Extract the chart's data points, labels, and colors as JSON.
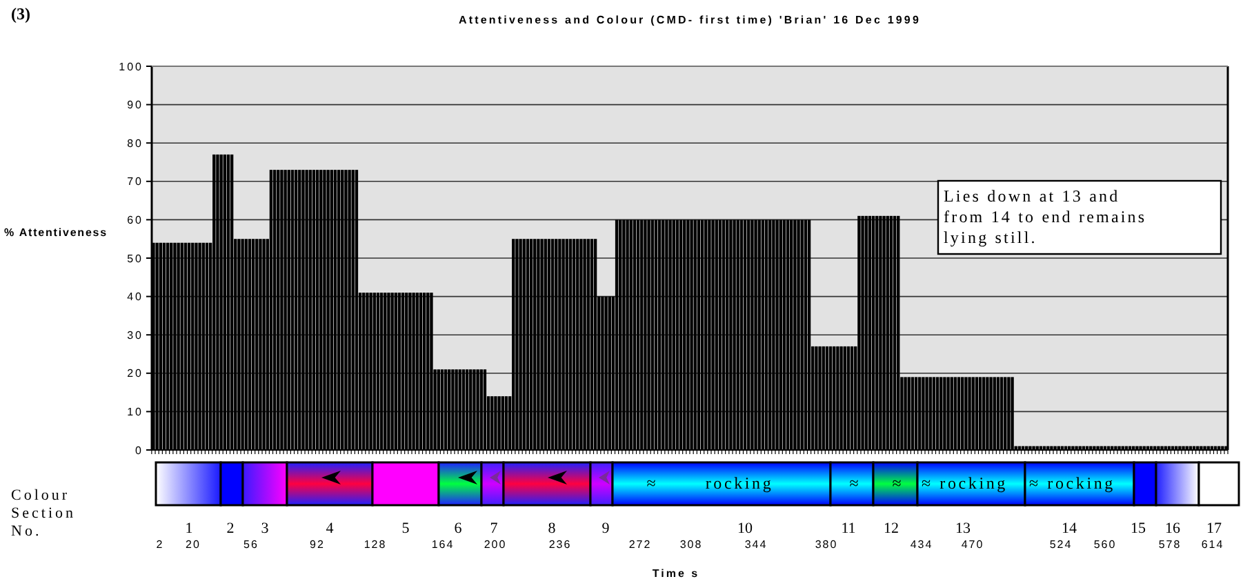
{
  "chart_data": [
    {
      "type": "bar",
      "title": "Attentiveness and Colour (CMD- first time) 'Brian' 16 Dec 1999",
      "ylabel": "% Attentiveness",
      "annotations": [
        "(3)",
        "Lies down at 13 and from 14 to end remains lying still."
      ],
      "ylim": [
        0,
        100
      ],
      "yticks": [
        0,
        10,
        20,
        30,
        40,
        50,
        60,
        70,
        80,
        90,
        100
      ],
      "grid": "y",
      "color": "#000000",
      "categories": [
        null,
        null,
        null,
        null,
        null,
        null,
        null,
        null,
        null,
        null,
        null,
        null,
        null,
        null,
        null,
        null,
        null,
        null,
        null,
        null,
        null,
        null,
        null,
        null,
        null,
        null,
        null,
        null,
        null,
        null,
        null,
        null,
        null,
        null,
        null,
        null,
        null,
        null,
        null,
        null,
        null,
        null,
        null,
        null,
        null,
        null,
        null,
        null,
        null,
        null,
        null,
        null,
        null,
        null,
        null,
        null,
        null,
        null,
        null,
        null,
        null,
        null,
        null,
        null,
        null,
        null,
        null,
        null,
        null,
        null,
        null,
        null,
        null,
        null,
        null,
        null,
        null,
        null,
        null,
        null,
        null,
        null,
        null,
        null,
        null,
        null,
        null,
        null,
        null,
        null,
        null,
        null,
        null,
        null,
        null,
        null,
        null,
        null,
        null,
        null,
        null,
        null,
        null,
        null,
        null,
        null,
        null,
        null,
        null,
        null,
        null,
        null,
        null,
        null,
        null,
        null,
        null,
        null,
        null,
        null,
        null,
        null,
        null,
        null,
        null,
        null,
        null,
        null,
        null,
        null,
        null,
        null,
        null,
        null,
        null,
        null,
        null,
        null,
        null,
        null,
        null,
        null,
        null,
        null,
        null,
        null,
        null,
        null,
        null,
        null,
        null,
        null,
        null,
        null,
        null,
        null,
        null,
        null,
        null,
        null,
        null,
        null,
        null,
        null,
        null,
        null,
        null,
        null,
        null,
        null,
        null,
        null,
        null,
        null,
        null,
        null,
        null,
        null,
        null,
        null,
        null,
        null,
        null,
        null,
        null,
        null,
        null,
        null,
        null,
        null,
        null,
        null,
        null,
        null,
        null,
        null,
        null,
        null,
        null,
        null,
        null,
        null,
        null,
        null,
        null,
        null,
        null,
        null,
        null,
        null,
        null,
        null,
        null,
        null,
        null,
        null,
        null,
        null,
        null,
        null,
        null,
        null,
        null,
        null,
        null,
        null,
        null,
        null,
        null,
        null,
        null,
        null,
        null,
        null,
        null,
        null,
        null,
        null,
        null,
        null,
        null,
        null,
        null,
        null,
        null,
        null,
        null,
        null,
        null,
        null,
        null,
        null,
        null,
        null,
        null,
        null,
        null,
        null,
        null,
        null,
        null,
        null,
        null,
        null,
        null,
        null,
        null,
        null,
        null,
        null,
        null,
        null,
        null,
        null,
        null,
        null,
        null,
        null,
        null,
        null,
        null,
        null,
        null,
        null,
        null,
        null,
        null,
        null,
        null,
        null,
        null,
        null,
        null,
        null,
        null,
        null,
        null,
        null,
        null,
        null,
        null,
        null
      ],
      "values": [
        54,
        54,
        54,
        54,
        54,
        54,
        54,
        54,
        54,
        54,
        54,
        54,
        54,
        54,
        54,
        54,
        54,
        77,
        77,
        77,
        77,
        77,
        77,
        55,
        55,
        55,
        55,
        55,
        55,
        55,
        55,
        55,
        55,
        73,
        73,
        73,
        73,
        73,
        73,
        73,
        73,
        73,
        73,
        73,
        73,
        73,
        73,
        73,
        73,
        73,
        73,
        73,
        73,
        73,
        73,
        73,
        73,
        73,
        41,
        41,
        41,
        41,
        41,
        41,
        41,
        41,
        41,
        41,
        41,
        41,
        41,
        41,
        41,
        41,
        41,
        41,
        41,
        41,
        41,
        21,
        21,
        21,
        21,
        21,
        21,
        21,
        21,
        21,
        21,
        21,
        21,
        21,
        21,
        21,
        14,
        14,
        14,
        14,
        14,
        14,
        14,
        55,
        55,
        55,
        55,
        55,
        55,
        55,
        55,
        55,
        55,
        55,
        55,
        55,
        55,
        55,
        55,
        55,
        55,
        55,
        55,
        55,
        55,
        55,
        55,
        40,
        40,
        40,
        40,
        40,
        60,
        60,
        60,
        60,
        60,
        60,
        60,
        60,
        60,
        60,
        60,
        60,
        60,
        60,
        60,
        60,
        60,
        60,
        60,
        60,
        60,
        60,
        60,
        60,
        60,
        60,
        60,
        60,
        60,
        60,
        60,
        60,
        60,
        60,
        60,
        60,
        60,
        60,
        60,
        60,
        60,
        60,
        60,
        60,
        60,
        60,
        60,
        60,
        60,
        60,
        60,
        60,
        60,
        60,
        60,
        27,
        27,
        27,
        27,
        27,
        27,
        27,
        27,
        27,
        27,
        27,
        27,
        27,
        61,
        61,
        61,
        61,
        61,
        61,
        61,
        61,
        61,
        61,
        61,
        61,
        19,
        19,
        19,
        19,
        19,
        19,
        19,
        19,
        19,
        19,
        19,
        19,
        19,
        19,
        19,
        19,
        19,
        19,
        19,
        19,
        19,
        19,
        19,
        19,
        19,
        19,
        19,
        19,
        19,
        19,
        19,
        19,
        1,
        1,
        1,
        1,
        1,
        1,
        1,
        1,
        1,
        1,
        1,
        1,
        1,
        1,
        1,
        1,
        1,
        1,
        1,
        1,
        1,
        1,
        1,
        1,
        1,
        1,
        1,
        1,
        1,
        1,
        1,
        1,
        1,
        1,
        1,
        1,
        1,
        1,
        1,
        1,
        1,
        1,
        1,
        1,
        1,
        1,
        1,
        1,
        1,
        1,
        1,
        1,
        1,
        1,
        1,
        1,
        1,
        1,
        1,
        1
      ]
    },
    {
      "type": "other",
      "ylabel": "Colour Section No.",
      "xlabel": "Time s",
      "categories": [
        "1",
        "2",
        "3",
        "4",
        "5",
        "6",
        "7",
        "8",
        "9",
        "10",
        "11",
        "12",
        "13",
        "14",
        "15",
        "16",
        "17"
      ],
      "colors": [
        [
          "#ffffff",
          "#1a1aff"
        ],
        [
          "#0000ff"
        ],
        [
          "#3a1aff",
          "#ff00ff"
        ],
        [
          "#2020ff",
          "#ff0040",
          "#2020ff"
        ],
        [
          "#ff00ff"
        ],
        [
          "#2020ff",
          "#00ff40",
          "#2020ff"
        ],
        [
          "#4020ff",
          "#d000ff",
          "#4020ff"
        ],
        [
          "#2020ff",
          "#ff0040",
          "#2020ff"
        ],
        [
          "#4020ff",
          "#d000ff",
          "#4020ff"
        ],
        [
          "#0000ff",
          "#00ffff",
          "#0000ff"
        ],
        [
          "#0000ff",
          "#00ffff",
          "#0000ff"
        ],
        [
          "#0000ff",
          "#00ff40",
          "#0000ff"
        ],
        [
          "#0000ff",
          "#00ffff",
          "#0000ff"
        ],
        [
          "#0000ff",
          "#00ffff",
          "#0000ff"
        ],
        [
          "#0000ff"
        ],
        [
          "#2020ff",
          "#ffffff"
        ],
        [
          "#ffffff"
        ]
      ],
      "annotations": [
        "2",
        "20",
        "56",
        "92",
        "128",
        "164",
        "200",
        "236",
        "272",
        "308",
        "344",
        "380",
        "434",
        "470",
        "524",
        "560",
        "578",
        "614",
        "≈",
        "rocking",
        "≈",
        "≈",
        "≈ rocking",
        "≈ rocking"
      ]
    }
  ]
}
